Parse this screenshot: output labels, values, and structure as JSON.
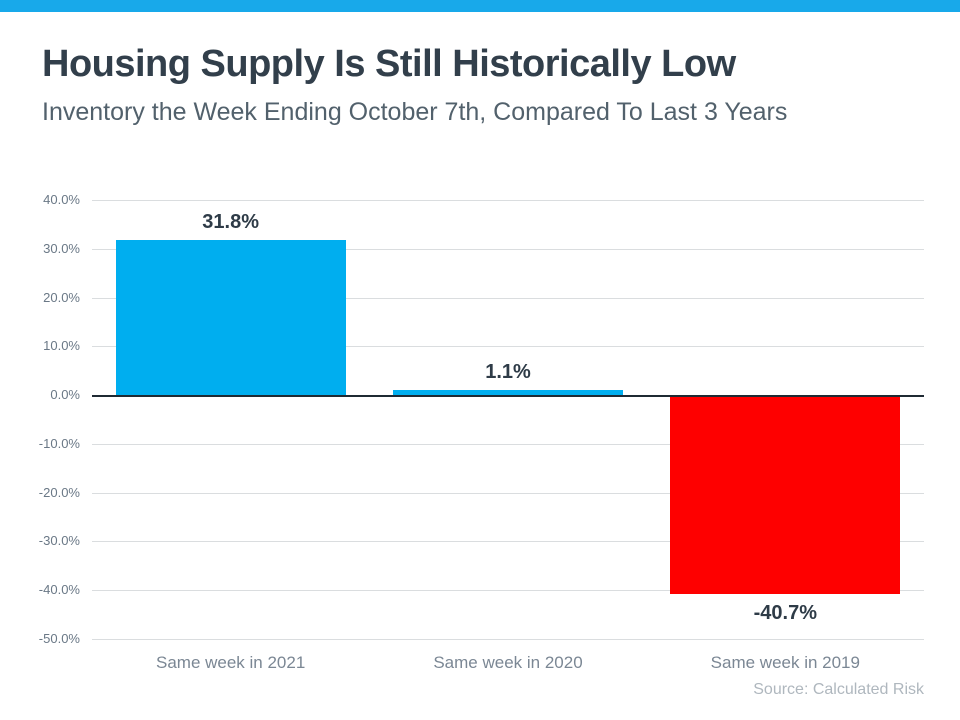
{
  "header": {
    "title": "Housing Supply Is Still Historically Low",
    "subtitle": "Inventory the Week Ending October 7th, Compared To Last 3 Years"
  },
  "footer": {
    "source": "Source: Calculated Risk"
  },
  "colors": {
    "accent_stripe": "#18A9EA",
    "bar_positive": "#00AEEF",
    "bar_negative": "#FE0000",
    "title_text": "#323F4B",
    "subtitle_text": "#52616C",
    "axis_text": "#6A7886",
    "category_text": "#7B8794",
    "value_label_text": "#2E3B47",
    "gridline": "#DADDDF",
    "zero_line": "#1F2A33",
    "source_text": "#AFB7BE"
  },
  "chart_data": {
    "type": "bar",
    "title": "Housing Supply Is Still Historically Low",
    "subtitle": "Inventory the Week Ending October 7th, Compared To Last 3 Years",
    "categories": [
      "Same week in 2021",
      "Same week in 2020",
      "Same week in 2019"
    ],
    "values": [
      31.8,
      1.1,
      -40.7
    ],
    "point_labels": [
      "31.8%",
      "1.1%",
      "-40.7%"
    ],
    "bar_colors": [
      "#00AEEF",
      "#00AEEF",
      "#FE0000"
    ],
    "xlabel": "",
    "ylabel": "",
    "ylim": [
      -50,
      40
    ],
    "ytick_step": 10,
    "ytick_labels": [
      "40.0%",
      "30.0%",
      "20.0%",
      "10.0%",
      "0.0%",
      "-10.0%",
      "-20.0%",
      "-30.0%",
      "-40.0%",
      "-50.0%"
    ],
    "grid": true,
    "legend": false,
    "annotation": "Source: Calculated Risk"
  }
}
